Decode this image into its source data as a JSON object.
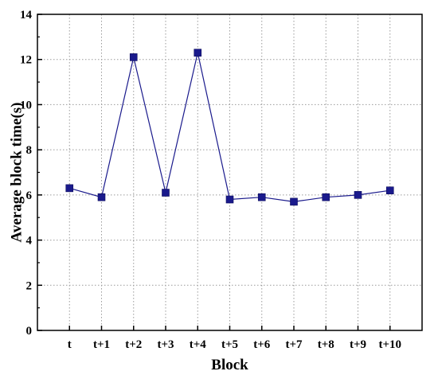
{
  "chart_data": {
    "type": "line",
    "title": "",
    "xlabel": "Block",
    "ylabel": "Average block time(s)",
    "categories": [
      "t",
      "t+1",
      "t+2",
      "t+3",
      "t+4",
      "t+5",
      "t+6",
      "t+7",
      "t+8",
      "t+9",
      "t+10"
    ],
    "series": [
      {
        "values": [
          6.3,
          5.9,
          12.1,
          6.1,
          12.3,
          5.8,
          5.9,
          5.7,
          5.9,
          6.0,
          6.2
        ]
      }
    ],
    "ylim": [
      0,
      14
    ],
    "yticks": [
      0,
      2,
      4,
      6,
      8,
      10,
      12,
      14
    ],
    "grid": true,
    "legend": "none",
    "line_color": "#1a1a8c",
    "marker": "square"
  }
}
